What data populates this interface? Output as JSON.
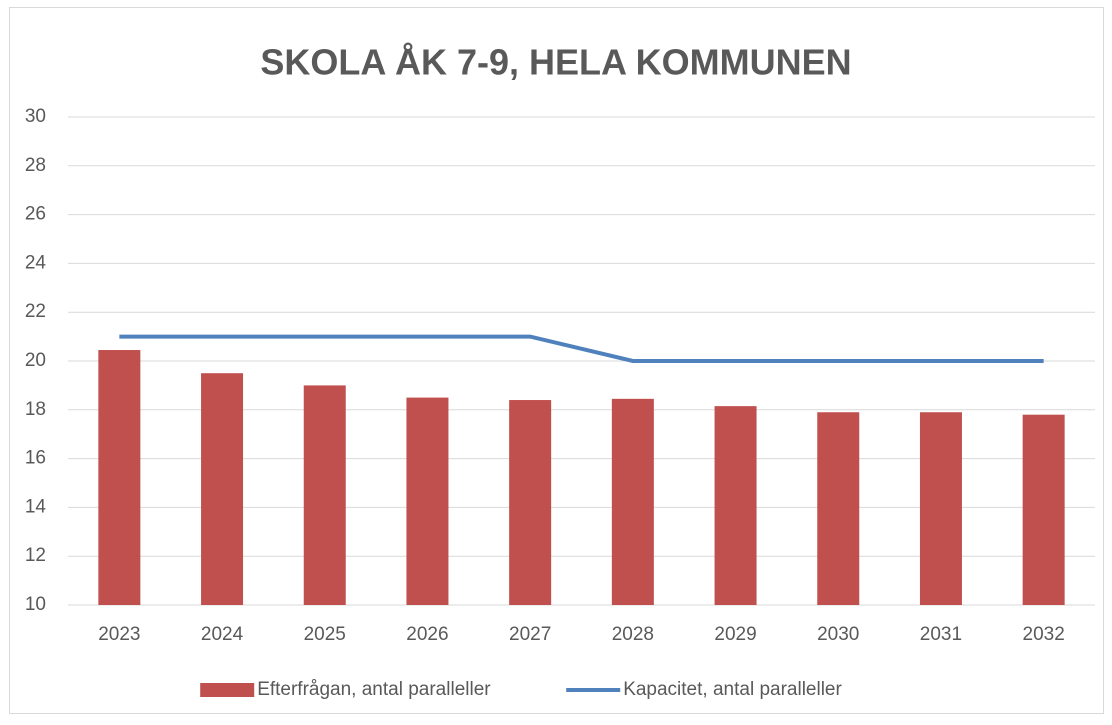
{
  "chart_data": {
    "type": "combo",
    "title": "SKOLA ÅK 7-9, HELA KOMMUNEN",
    "categories": [
      "2023",
      "2024",
      "2025",
      "2026",
      "2027",
      "2028",
      "2029",
      "2030",
      "2031",
      "2032"
    ],
    "series": [
      {
        "name": "Efterfrågan, antal paralleller",
        "type": "bar",
        "color": "#c0504d",
        "values": [
          20.45,
          19.5,
          19.0,
          18.5,
          18.4,
          18.45,
          18.15,
          17.9,
          17.9,
          17.8
        ]
      },
      {
        "name": "Kapacitet, antal paralleller",
        "type": "line",
        "color": "#4f81bd",
        "values": [
          21,
          21,
          21,
          21,
          21,
          20,
          20,
          20,
          20,
          20
        ]
      }
    ],
    "ylim": [
      10,
      30
    ],
    "yticks": [
      10,
      12,
      14,
      16,
      18,
      20,
      22,
      24,
      26,
      28,
      30
    ],
    "grid": true,
    "legend": "bottom"
  }
}
